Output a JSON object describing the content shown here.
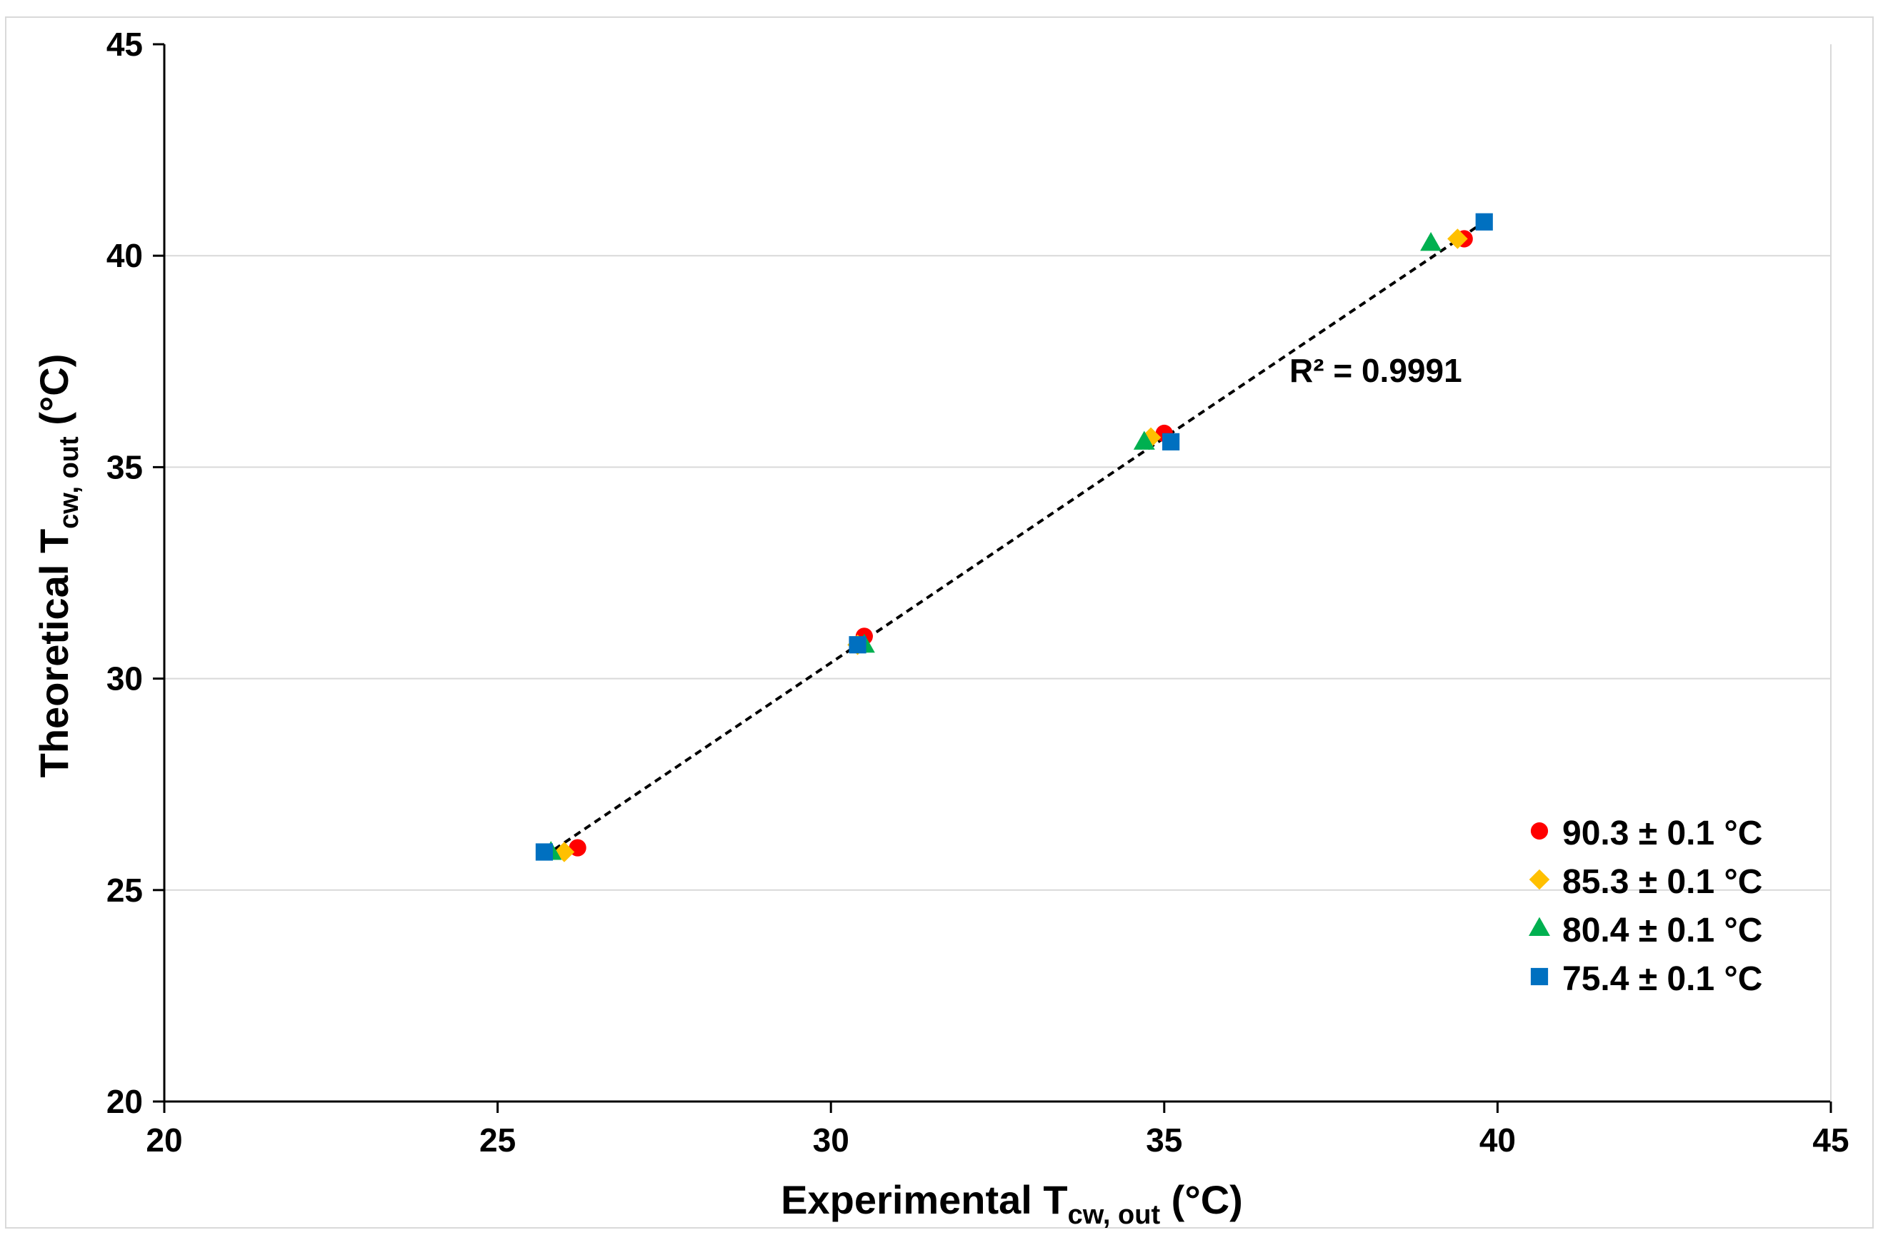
{
  "chart_data": {
    "type": "scatter",
    "title": "",
    "xlabel": {
      "main": "Experimental T",
      "sub": "cw, out",
      "unit": " (°C)"
    },
    "ylabel": {
      "main": "Theoretical T",
      "sub": "cw, out",
      "unit": " (°C)"
    },
    "xlim": [
      20,
      45
    ],
    "ylim": [
      20,
      45
    ],
    "xticks": [
      20,
      25,
      30,
      35,
      40,
      45
    ],
    "yticks": [
      20,
      25,
      30,
      35,
      40,
      45
    ],
    "grid": "horizontal",
    "legend_position": "bottom-right",
    "series": [
      {
        "name": "90.3 ± 0.1 °C",
        "marker": "circle",
        "color": "#ff0000",
        "points": [
          [
            26.2,
            26.0
          ],
          [
            30.5,
            31.0
          ],
          [
            35.0,
            35.8
          ],
          [
            39.5,
            40.4
          ]
        ]
      },
      {
        "name": "85.3 ± 0.1 °C",
        "marker": "diamond",
        "color": "#ffc000",
        "points": [
          [
            26.0,
            25.9
          ],
          [
            30.4,
            30.8
          ],
          [
            34.8,
            35.7
          ],
          [
            39.4,
            40.4
          ]
        ]
      },
      {
        "name": "80.4 ± 0.1 °C",
        "marker": "triangle",
        "color": "#00b050",
        "points": [
          [
            25.8,
            25.9
          ],
          [
            30.5,
            30.8
          ],
          [
            34.7,
            35.6
          ],
          [
            39.0,
            40.3
          ]
        ]
      },
      {
        "name": "75.4 ± 0.1 °C",
        "marker": "square",
        "color": "#0070c0",
        "points": [
          [
            25.7,
            25.9
          ],
          [
            30.4,
            30.8
          ],
          [
            35.1,
            35.6
          ],
          [
            39.8,
            40.8
          ]
        ]
      }
    ],
    "trendline": {
      "style": "dashed",
      "color": "#000000",
      "from": [
        25.7,
        25.8
      ],
      "to": [
        39.8,
        40.8
      ]
    },
    "annotations": [
      {
        "text": "R² = 0.9991"
      }
    ]
  }
}
